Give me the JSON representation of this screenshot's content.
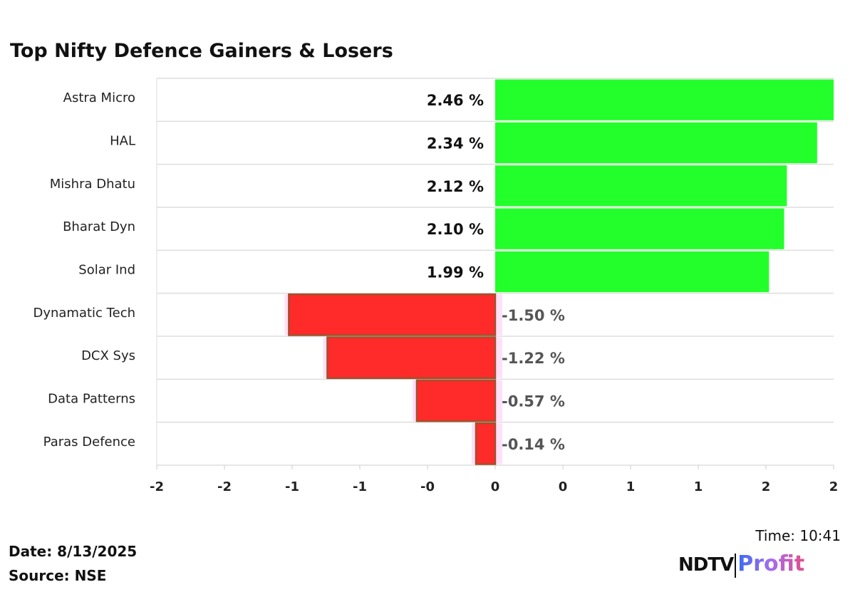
{
  "title": "Top Nifty Defence Gainers & Losers",
  "chart_data": {
    "type": "bar",
    "orientation": "horizontal",
    "title": "Top Nifty Defence Gainers & Losers",
    "categories": [
      "Astra Micro",
      "HAL",
      "Mishra Dhatu",
      "Bharat Dyn",
      "Solar Ind",
      "Dynamatic Tech",
      "DCX Sys",
      "Data Patterns",
      "Paras Defence"
    ],
    "values": [
      2.46,
      2.34,
      2.12,
      2.1,
      1.99,
      -1.5,
      -1.22,
      -0.57,
      -0.14
    ],
    "labels": [
      "2.46 %",
      "2.34 %",
      "2.12 %",
      "2.10 %",
      "1.99 %",
      "-1.50 %",
      "-1.22 %",
      "-0.57 %",
      "-0.14 %"
    ],
    "xlim": [
      -2.46,
      2.46
    ],
    "xticks": [
      -2.46,
      -1.968,
      -1.476,
      -0.984,
      -0.492,
      0,
      0.492,
      0.984,
      1.476,
      1.968,
      2.46
    ],
    "xtick_labels": [
      "-2",
      "-2",
      "-1",
      "-1",
      "-0",
      "0",
      "0",
      "1",
      "1",
      "2",
      "2"
    ],
    "grid": true,
    "colors": {
      "positive": "#22ff2a",
      "negative": "#ff2a2a",
      "negative_edge": "#a0522d",
      "positive_label": "#111111",
      "negative_label": "#555555"
    }
  },
  "footer": {
    "date": "Date: 8/13/2025",
    "source": "Source: NSE",
    "time": "Time: 10:41",
    "logo_text": "NDTV Profit"
  }
}
